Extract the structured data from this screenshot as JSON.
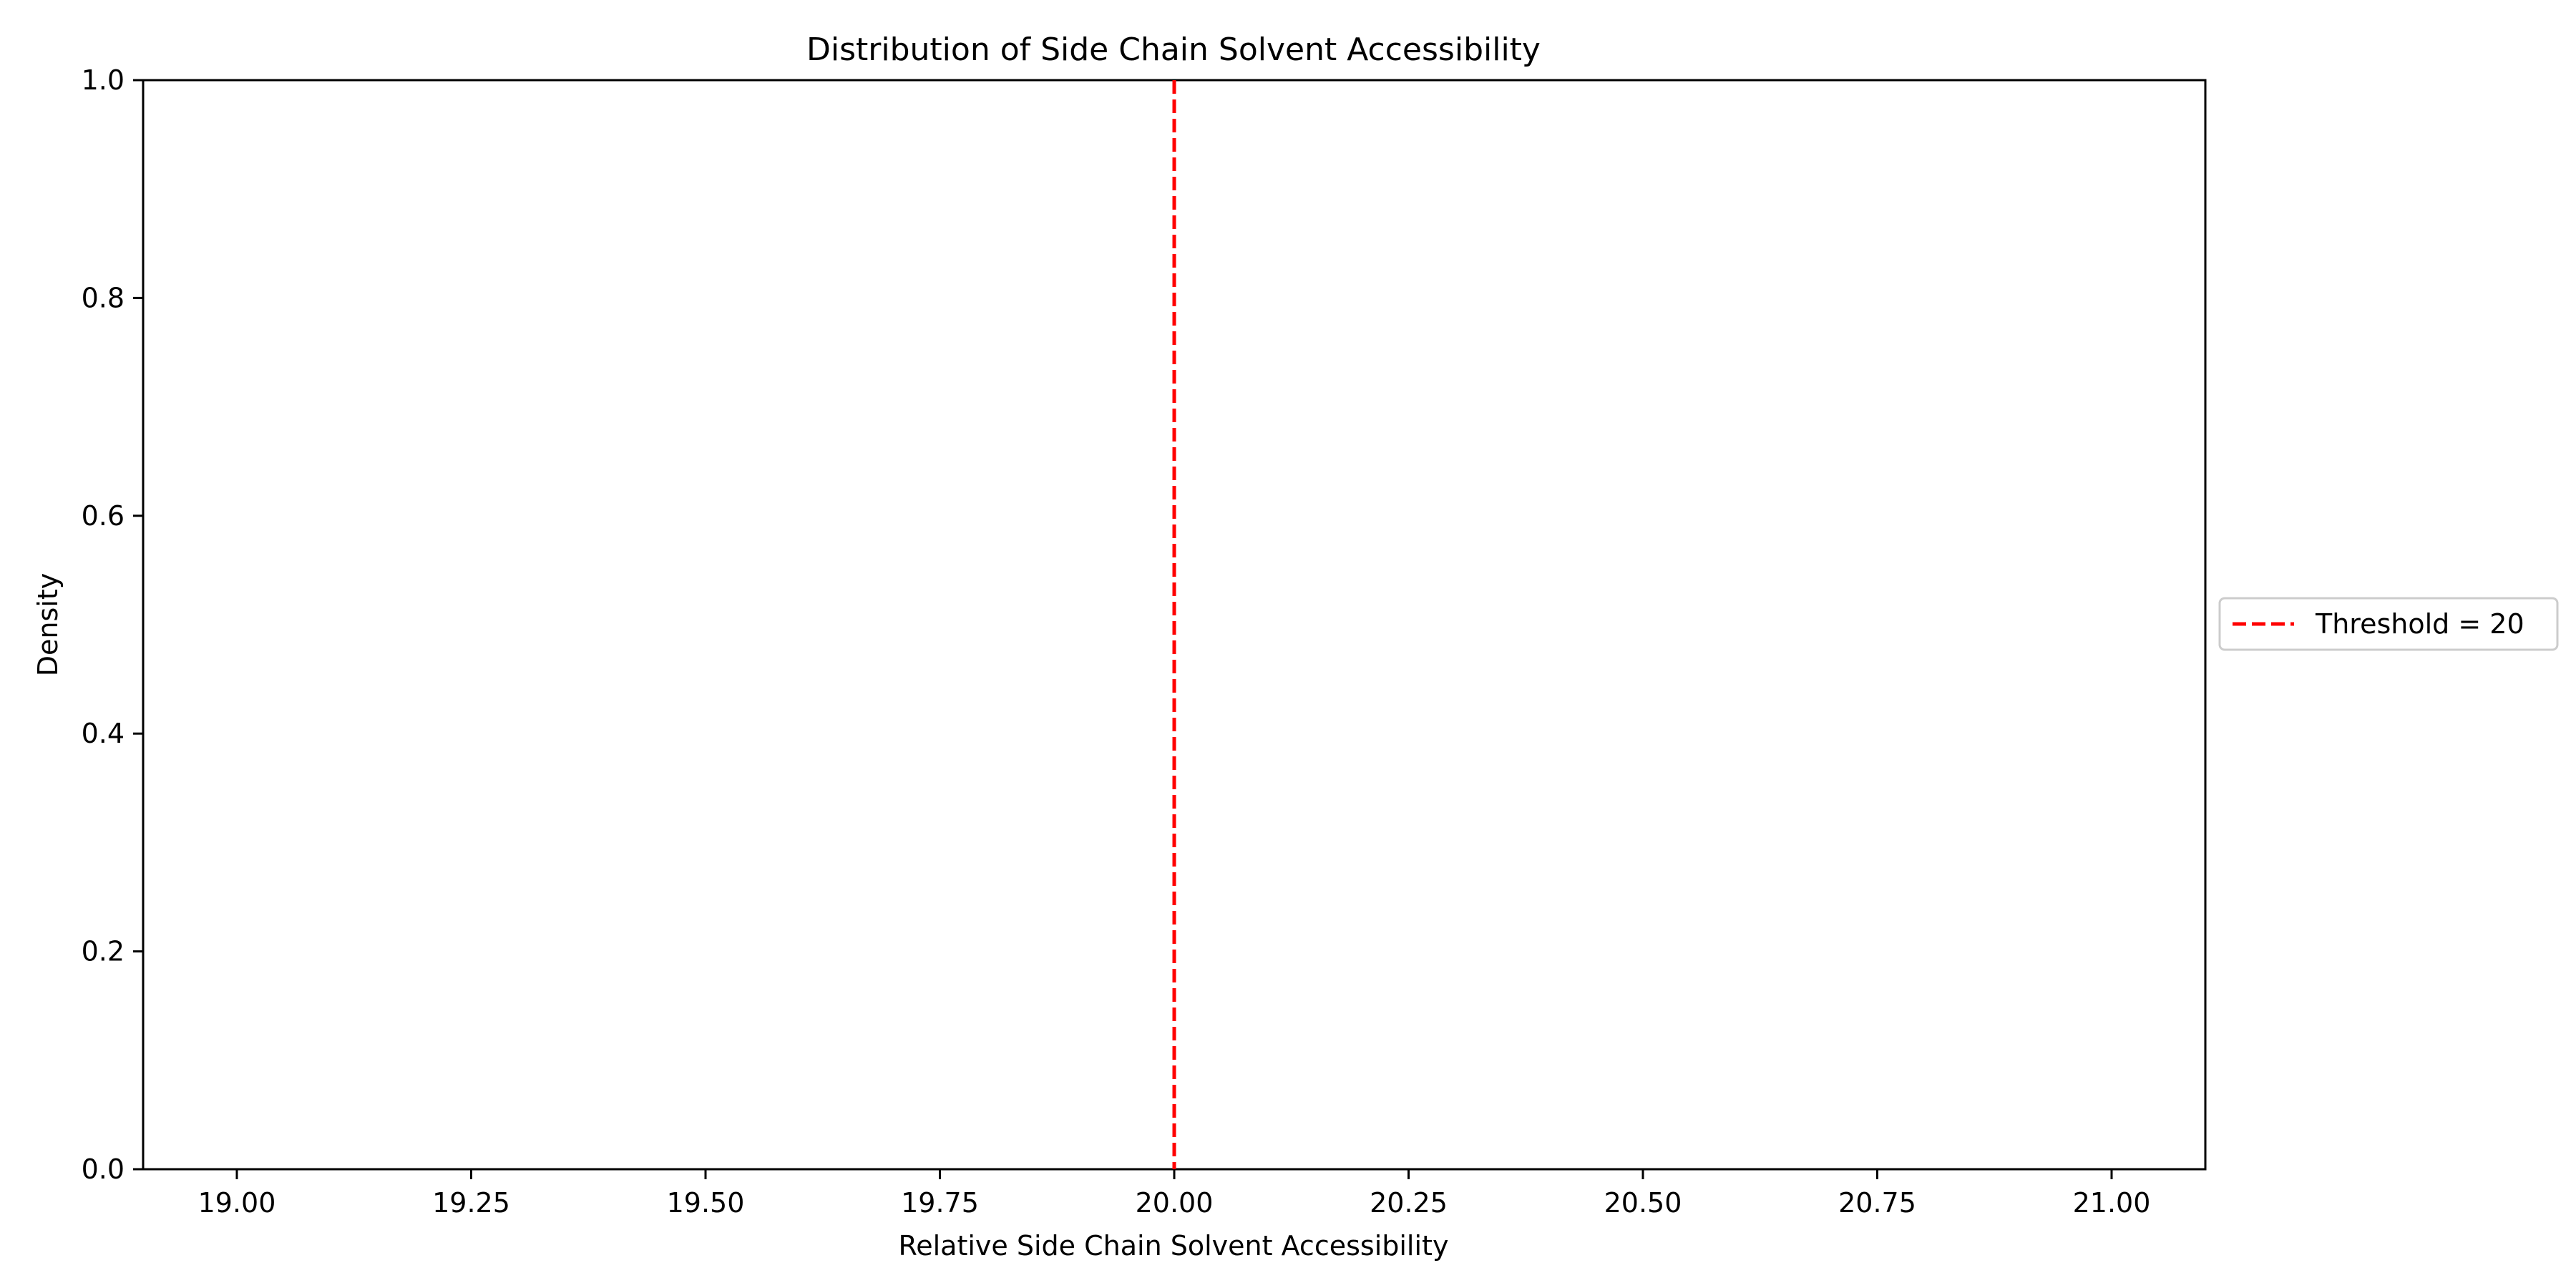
{
  "chart_data": {
    "type": "line",
    "title": "Distribution of Side Chain Solvent Accessibility",
    "xlabel": "Relative Side Chain Solvent Accessibility",
    "ylabel": "Density",
    "xlim": [
      18.9,
      21.1
    ],
    "ylim": [
      0,
      1
    ],
    "x_ticks": [
      "19.00",
      "19.25",
      "19.50",
      "19.75",
      "20.00",
      "20.25",
      "20.50",
      "20.75",
      "21.00"
    ],
    "y_ticks": [
      "0.0",
      "0.2",
      "0.4",
      "0.6",
      "0.8",
      "1.0"
    ],
    "grid": false,
    "series": [],
    "reference_lines": [
      {
        "orientation": "vertical",
        "x": 20,
        "style": "dashed",
        "color": "#ff0000",
        "label": "Threshold = 20"
      }
    ],
    "legend": {
      "placement": "outside-right",
      "entries": [
        "Threshold = 20"
      ]
    }
  }
}
